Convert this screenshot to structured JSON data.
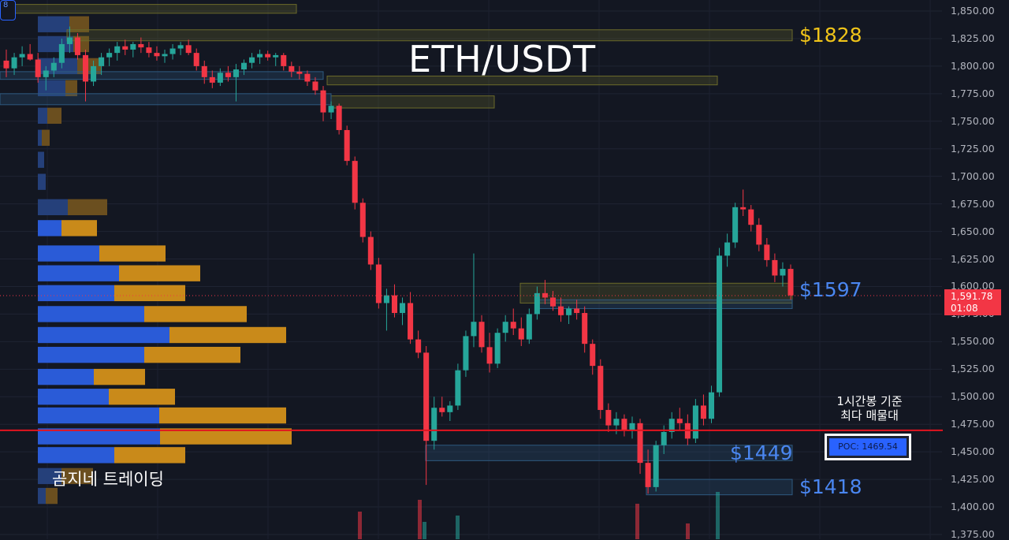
{
  "chart_data": {
    "type": "candlestick",
    "title": "ETH/USDT",
    "ylim": [
      1370,
      1860
    ],
    "y_ticks": [
      "1,850.00",
      "1,825.00",
      "1,800.00",
      "1,775.00",
      "1,750.00",
      "1,725.00",
      "1,700.00",
      "1,675.00",
      "1,650.00",
      "1,625.00",
      "1,600.00",
      "1,575.00",
      "1,550.00",
      "1,525.00",
      "1,500.00",
      "1,475.00",
      "1,450.00",
      "1,425.00",
      "1,400.00",
      "1,375.00"
    ],
    "grid": true,
    "last_price": "1,591.78",
    "countdown": "01:08",
    "levels": [
      {
        "label": "$1828",
        "price": 1828,
        "color": "#f0c419"
      },
      {
        "label": "$1597",
        "price": 1597,
        "color": "#4a86f0"
      },
      {
        "label": "$1449",
        "price": 1449,
        "color": "#4a86f0"
      },
      {
        "label": "$1418",
        "price": 1418,
        "color": "#4a86f0"
      }
    ],
    "poc": {
      "label": "POC: 1469.54",
      "price": 1469.54,
      "note_line1": "1시간봉 기준",
      "note_line2": "최다 매물대"
    },
    "watermark": "곰지네 트레이딩",
    "candles": [
      [
        1805,
        1815,
        1790,
        1798
      ],
      [
        1798,
        1812,
        1792,
        1808
      ],
      [
        1808,
        1818,
        1800,
        1811
      ],
      [
        1811,
        1820,
        1805,
        1806
      ],
      [
        1806,
        1812,
        1785,
        1790
      ],
      [
        1790,
        1800,
        1778,
        1796
      ],
      [
        1796,
        1808,
        1790,
        1803
      ],
      [
        1803,
        1825,
        1798,
        1820
      ],
      [
        1820,
        1836,
        1812,
        1826
      ],
      [
        1826,
        1830,
        1806,
        1810
      ],
      [
        1810,
        1815,
        1768,
        1786
      ],
      [
        1786,
        1805,
        1782,
        1800
      ],
      [
        1800,
        1812,
        1792,
        1808
      ],
      [
        1808,
        1816,
        1800,
        1812
      ],
      [
        1812,
        1822,
        1805,
        1818
      ],
      [
        1818,
        1824,
        1810,
        1815
      ],
      [
        1815,
        1822,
        1808,
        1820
      ],
      [
        1820,
        1826,
        1812,
        1817
      ],
      [
        1817,
        1822,
        1808,
        1812
      ],
      [
        1812,
        1818,
        1805,
        1809
      ],
      [
        1809,
        1815,
        1803,
        1811
      ],
      [
        1811,
        1820,
        1806,
        1816
      ],
      [
        1816,
        1822,
        1810,
        1819
      ],
      [
        1819,
        1824,
        1810,
        1812
      ],
      [
        1812,
        1816,
        1796,
        1800
      ],
      [
        1800,
        1805,
        1784,
        1790
      ],
      [
        1790,
        1796,
        1780,
        1785
      ],
      [
        1785,
        1798,
        1782,
        1794
      ],
      [
        1794,
        1800,
        1786,
        1790
      ],
      [
        1790,
        1802,
        1768,
        1797
      ],
      [
        1797,
        1806,
        1792,
        1803
      ],
      [
        1803,
        1812,
        1798,
        1808
      ],
      [
        1808,
        1815,
        1802,
        1811
      ],
      [
        1811,
        1814,
        1805,
        1808
      ],
      [
        1808,
        1812,
        1800,
        1810
      ],
      [
        1810,
        1812,
        1796,
        1800
      ],
      [
        1800,
        1804,
        1790,
        1795
      ],
      [
        1795,
        1800,
        1788,
        1793
      ],
      [
        1793,
        1796,
        1782,
        1786
      ],
      [
        1786,
        1790,
        1774,
        1778
      ],
      [
        1778,
        1782,
        1750,
        1758
      ],
      [
        1758,
        1768,
        1752,
        1764
      ],
      [
        1764,
        1766,
        1738,
        1742
      ],
      [
        1742,
        1746,
        1710,
        1714
      ],
      [
        1714,
        1718,
        1670,
        1676
      ],
      [
        1676,
        1680,
        1640,
        1645
      ],
      [
        1645,
        1650,
        1615,
        1620
      ],
      [
        1620,
        1626,
        1580,
        1585
      ],
      [
        1585,
        1598,
        1560,
        1592
      ],
      [
        1592,
        1602,
        1572,
        1576
      ],
      [
        1576,
        1590,
        1565,
        1585
      ],
      [
        1585,
        1595,
        1548,
        1552
      ],
      [
        1552,
        1560,
        1535,
        1540
      ],
      [
        1540,
        1546,
        1420,
        1460
      ],
      [
        1460,
        1500,
        1452,
        1490
      ],
      [
        1490,
        1500,
        1482,
        1486
      ],
      [
        1486,
        1496,
        1478,
        1492
      ],
      [
        1492,
        1530,
        1488,
        1524
      ],
      [
        1524,
        1560,
        1518,
        1555
      ],
      [
        1555,
        1630,
        1545,
        1568
      ],
      [
        1568,
        1574,
        1540,
        1545
      ],
      [
        1545,
        1558,
        1522,
        1530
      ],
      [
        1530,
        1562,
        1526,
        1558
      ],
      [
        1558,
        1574,
        1550,
        1568
      ],
      [
        1568,
        1580,
        1556,
        1562
      ],
      [
        1562,
        1572,
        1546,
        1552
      ],
      [
        1552,
        1580,
        1548,
        1575
      ],
      [
        1575,
        1600,
        1570,
        1594
      ],
      [
        1594,
        1606,
        1584,
        1590
      ],
      [
        1590,
        1596,
        1578,
        1582
      ],
      [
        1582,
        1590,
        1568,
        1574
      ],
      [
        1574,
        1582,
        1566,
        1580
      ],
      [
        1580,
        1588,
        1570,
        1576
      ],
      [
        1576,
        1582,
        1540,
        1548
      ],
      [
        1548,
        1552,
        1520,
        1528
      ],
      [
        1528,
        1534,
        1480,
        1488
      ],
      [
        1488,
        1494,
        1468,
        1474
      ],
      [
        1474,
        1486,
        1466,
        1480
      ],
      [
        1480,
        1484,
        1464,
        1470
      ],
      [
        1470,
        1482,
        1462,
        1476
      ],
      [
        1476,
        1480,
        1430,
        1440
      ],
      [
        1440,
        1452,
        1412,
        1418
      ],
      [
        1418,
        1460,
        1414,
        1456
      ],
      [
        1456,
        1474,
        1448,
        1468
      ],
      [
        1468,
        1486,
        1462,
        1480
      ],
      [
        1480,
        1490,
        1470,
        1476
      ],
      [
        1476,
        1484,
        1456,
        1462
      ],
      [
        1462,
        1498,
        1458,
        1492
      ],
      [
        1492,
        1502,
        1474,
        1480
      ],
      [
        1480,
        1510,
        1476,
        1504
      ],
      [
        1504,
        1635,
        1500,
        1628
      ],
      [
        1628,
        1648,
        1618,
        1640
      ],
      [
        1640,
        1676,
        1635,
        1672
      ],
      [
        1672,
        1688,
        1664,
        1670
      ],
      [
        1670,
        1674,
        1650,
        1656
      ],
      [
        1656,
        1662,
        1632,
        1638
      ],
      [
        1638,
        1644,
        1618,
        1624
      ],
      [
        1624,
        1630,
        1604,
        1610
      ],
      [
        1610,
        1622,
        1600,
        1616
      ],
      [
        1616,
        1620,
        1588,
        1592
      ]
    ]
  },
  "corner_badge": "8"
}
